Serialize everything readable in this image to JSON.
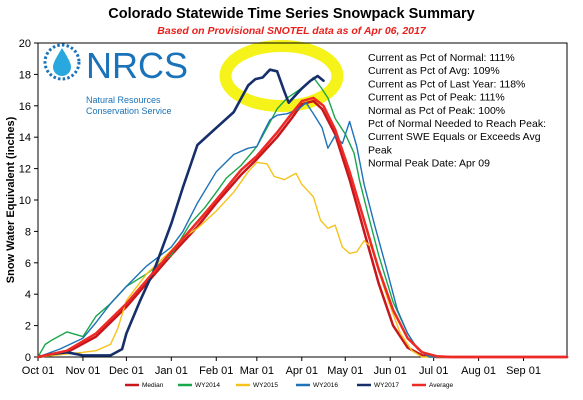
{
  "chart_data": {
    "type": "line",
    "title": "Colorado Statewide Time Series Snowpack Summary",
    "subtitle": "Based on Provisional SNOTEL data as of Apr 06, 2017",
    "xlabel": "",
    "ylabel": "Snow Water Equivalent (inches)",
    "ylim": [
      0,
      20
    ],
    "yticks": [
      0,
      2,
      4,
      6,
      8,
      10,
      12,
      14,
      16,
      18,
      20
    ],
    "x_tick_labels": [
      "Oct 01",
      "Nov 01",
      "Dec 01",
      "Jan 01",
      "Feb 01",
      "Mar 01",
      "Apr 01",
      "May 01",
      "Jun 01",
      "Jul 01",
      "Aug 01",
      "Sep 01"
    ],
    "x_unit": "days since Oct 01",
    "x_tick_days": [
      0,
      31,
      61,
      92,
      123,
      151,
      182,
      212,
      243,
      273,
      304,
      335
    ],
    "xlim": [
      0,
      365
    ],
    "grid": false,
    "legend": "bottom",
    "series": [
      {
        "name": "Median",
        "color": "#c8161d",
        "width": 2.5,
        "points": [
          [
            0,
            0
          ],
          [
            20,
            0.3
          ],
          [
            40,
            1.3
          ],
          [
            61,
            3.2
          ],
          [
            92,
            6.5
          ],
          [
            110,
            8.3
          ],
          [
            123,
            9.8
          ],
          [
            140,
            11.6
          ],
          [
            151,
            12.6
          ],
          [
            165,
            14
          ],
          [
            175,
            15.2
          ],
          [
            182,
            16.1
          ],
          [
            190,
            16.3
          ],
          [
            196,
            15.8
          ],
          [
            205,
            14.2
          ],
          [
            215,
            11.3
          ],
          [
            225,
            8
          ],
          [
            235,
            4.7
          ],
          [
            245,
            2
          ],
          [
            255,
            0.6
          ],
          [
            265,
            0.1
          ],
          [
            275,
            0
          ],
          [
            365,
            0
          ]
        ]
      },
      {
        "name": "WY2014",
        "color": "#1aa64a",
        "width": 1.4,
        "points": [
          [
            0,
            0
          ],
          [
            5,
            0.8
          ],
          [
            10,
            1.1
          ],
          [
            20,
            1.6
          ],
          [
            31,
            1.3
          ],
          [
            40,
            2.6
          ],
          [
            50,
            3.4
          ],
          [
            61,
            4.5
          ],
          [
            75,
            5.3
          ],
          [
            92,
            6.5
          ],
          [
            105,
            8.5
          ],
          [
            115,
            9.5
          ],
          [
            123,
            10.5
          ],
          [
            130,
            11.4
          ],
          [
            140,
            12.2
          ],
          [
            151,
            13.4
          ],
          [
            158,
            14.6
          ],
          [
            165,
            15.8
          ],
          [
            172,
            16.5
          ],
          [
            180,
            17
          ],
          [
            186,
            17.4
          ],
          [
            190,
            17.8
          ],
          [
            195,
            17.2
          ],
          [
            200,
            16.5
          ],
          [
            205,
            15.2
          ],
          [
            212,
            14.2
          ],
          [
            218,
            13
          ],
          [
            222,
            11.2
          ],
          [
            228,
            9
          ],
          [
            235,
            6.5
          ],
          [
            245,
            3.5
          ],
          [
            255,
            1.5
          ],
          [
            262,
            0.5
          ],
          [
            270,
            0.1
          ],
          [
            275,
            0
          ],
          [
            365,
            0
          ]
        ]
      },
      {
        "name": "WY2015",
        "color": "#f5c31c",
        "width": 1.4,
        "points": [
          [
            0,
            0
          ],
          [
            20,
            0.2
          ],
          [
            31,
            0.3
          ],
          [
            40,
            0.4
          ],
          [
            50,
            0.8
          ],
          [
            55,
            1.8
          ],
          [
            61,
            3.6
          ],
          [
            75,
            5.3
          ],
          [
            92,
            6.8
          ],
          [
            100,
            7.6
          ],
          [
            110,
            8.2
          ],
          [
            123,
            9.3
          ],
          [
            135,
            10.5
          ],
          [
            145,
            11.8
          ],
          [
            151,
            12.4
          ],
          [
            158,
            12.3
          ],
          [
            163,
            11.5
          ],
          [
            170,
            11.3
          ],
          [
            178,
            11.7
          ],
          [
            182,
            11
          ],
          [
            190,
            10.2
          ],
          [
            195,
            8.7
          ],
          [
            200,
            8.2
          ],
          [
            205,
            8.4
          ],
          [
            210,
            7
          ],
          [
            215,
            6.6
          ],
          [
            220,
            6.7
          ],
          [
            225,
            7.4
          ],
          [
            230,
            7
          ],
          [
            235,
            5.5
          ],
          [
            242,
            3.5
          ],
          [
            250,
            1.5
          ],
          [
            258,
            0.4
          ],
          [
            265,
            0
          ],
          [
            365,
            0
          ]
        ]
      },
      {
        "name": "WY2016",
        "color": "#1d72b8",
        "width": 1.4,
        "points": [
          [
            0,
            0
          ],
          [
            15,
            0.5
          ],
          [
            31,
            1.2
          ],
          [
            40,
            2.2
          ],
          [
            50,
            3.4
          ],
          [
            61,
            4.5
          ],
          [
            75,
            5.8
          ],
          [
            92,
            7
          ],
          [
            100,
            8
          ],
          [
            110,
            9.8
          ],
          [
            123,
            11.8
          ],
          [
            135,
            12.9
          ],
          [
            145,
            13.3
          ],
          [
            151,
            13.4
          ],
          [
            155,
            14.2
          ],
          [
            160,
            15.1
          ],
          [
            165,
            15.4
          ],
          [
            172,
            15.5
          ],
          [
            180,
            15.8
          ],
          [
            185,
            16.2
          ],
          [
            190,
            15.5
          ],
          [
            196,
            14.6
          ],
          [
            200,
            13.3
          ],
          [
            205,
            14.1
          ],
          [
            210,
            13.6
          ],
          [
            215,
            15
          ],
          [
            220,
            13.4
          ],
          [
            225,
            11
          ],
          [
            232,
            8.5
          ],
          [
            240,
            5.8
          ],
          [
            248,
            3
          ],
          [
            255,
            1.5
          ],
          [
            262,
            0.5
          ],
          [
            270,
            0
          ],
          [
            365,
            0
          ]
        ]
      },
      {
        "name": "WY2017",
        "color": "#162f6b",
        "width": 2.6,
        "points": [
          [
            0,
            0
          ],
          [
            10,
            0.2
          ],
          [
            20,
            0.3
          ],
          [
            31,
            0.1
          ],
          [
            40,
            0.1
          ],
          [
            50,
            0.1
          ],
          [
            58,
            0.5
          ],
          [
            61,
            1.5
          ],
          [
            70,
            3.5
          ],
          [
            80,
            5.5
          ],
          [
            92,
            8.5
          ],
          [
            100,
            10.8
          ],
          [
            110,
            13.5
          ],
          [
            123,
            14.6
          ],
          [
            135,
            15.6
          ],
          [
            145,
            17.3
          ],
          [
            150,
            17.7
          ],
          [
            155,
            17.8
          ],
          [
            160,
            18.3
          ],
          [
            165,
            18.2
          ],
          [
            170,
            16.9
          ],
          [
            173,
            16.2
          ],
          [
            178,
            16.7
          ],
          [
            182,
            17.1
          ],
          [
            188,
            17.6
          ],
          [
            193,
            17.9
          ],
          [
            197,
            17.6
          ]
        ]
      },
      {
        "name": "Average",
        "color": "#ee2a24",
        "width": 2.5,
        "points": [
          [
            0,
            0
          ],
          [
            20,
            0.4
          ],
          [
            40,
            1.5
          ],
          [
            61,
            3.4
          ],
          [
            92,
            6.7
          ],
          [
            110,
            8.6
          ],
          [
            123,
            10
          ],
          [
            140,
            11.9
          ],
          [
            151,
            12.8
          ],
          [
            165,
            14.3
          ],
          [
            175,
            15.5
          ],
          [
            182,
            16.3
          ],
          [
            190,
            16.5
          ],
          [
            197,
            16
          ],
          [
            205,
            14.5
          ],
          [
            215,
            11.8
          ],
          [
            225,
            8.7
          ],
          [
            235,
            5.6
          ],
          [
            245,
            3
          ],
          [
            255,
            1.2
          ],
          [
            265,
            0.3
          ],
          [
            275,
            0.05
          ],
          [
            285,
            0
          ],
          [
            365,
            0
          ]
        ]
      }
    ],
    "annotations": [
      "Current as Pct of Normal: 111%",
      "Current as Pct of Avg: 109%",
      "Current as Pct of Last Year: 118%",
      "Current as Pct of Peak: 111%",
      "Normal as Pct of Peak: 100%",
      "Pct of Normal Needed to Reach Peak:",
      "Current SWE Equals or Exceeds Avg",
      "Peak",
      "Normal Peak Date: Apr 09"
    ]
  },
  "logo": {
    "name": "NRCS",
    "line1": "Natural Resources",
    "line2": "Conservation Service",
    "color": "#1a72b8",
    "accent": "#29a8e0"
  },
  "highlight": {
    "color": "#f5f31a"
  }
}
